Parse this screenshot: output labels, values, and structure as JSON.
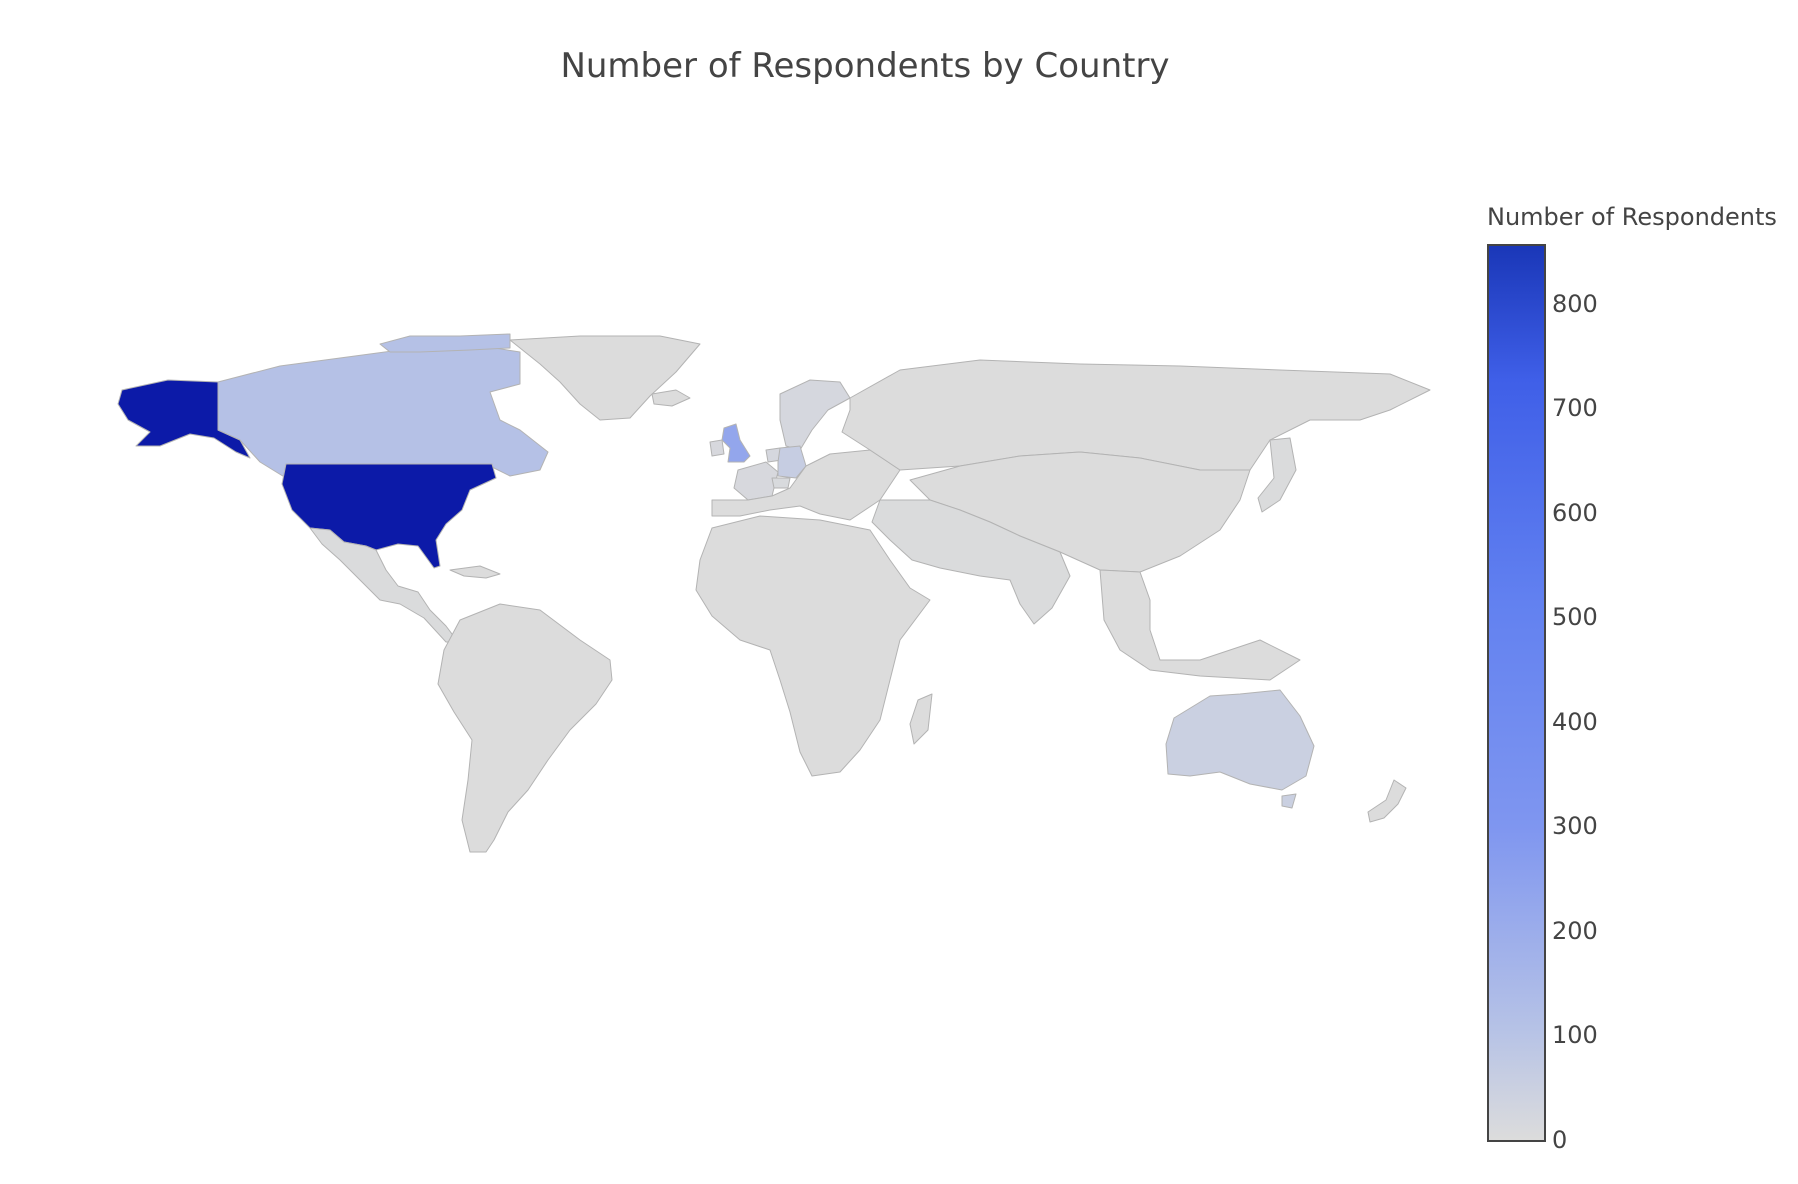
{
  "title": "Number of Respondents by Country",
  "colorbar": {
    "title": "Number of Respondents",
    "min": 0,
    "max": 855,
    "ticks": [
      "0",
      "100",
      "200",
      "300",
      "400",
      "500",
      "600",
      "700",
      "800"
    ],
    "colorscale": [
      [
        0,
        "#dcdcdc"
      ],
      [
        0.12,
        "#b7c3e6"
      ],
      [
        0.35,
        "#7f96f0"
      ],
      [
        0.6,
        "#6281f0"
      ],
      [
        0.85,
        "#3f5fe8"
      ],
      [
        1,
        "#1a37b8"
      ]
    ]
  },
  "colors": {
    "land": "#dcdcdc",
    "border": "#b3b3b3",
    "highest": "#0c1aa8"
  },
  "chart_data": {
    "type": "choropleth",
    "title": "Number of Respondents by Country",
    "legend": "right",
    "values": [
      {
        "country": "United States",
        "value": 855
      },
      {
        "country": "United Kingdom",
        "value": 230
      },
      {
        "country": "Canada",
        "value": 110
      },
      {
        "country": "Germany",
        "value": 60
      },
      {
        "country": "Australia",
        "value": 50
      },
      {
        "country": "Netherlands",
        "value": 20
      },
      {
        "country": "Sweden",
        "value": 20
      },
      {
        "country": "France",
        "value": 15
      },
      {
        "country": "Ireland",
        "value": 15
      },
      {
        "country": "Switzerland",
        "value": 10
      },
      {
        "country": "Mexico",
        "value": 5
      },
      {
        "country": "Brazil",
        "value": 5
      },
      {
        "country": "India",
        "value": 5
      },
      {
        "country": "Japan",
        "value": 5
      },
      {
        "country": "Greenland",
        "value": 0
      },
      {
        "country": "Russia",
        "value": 0
      },
      {
        "country": "China",
        "value": 0
      },
      {
        "country": "Africa",
        "value": 0
      },
      {
        "country": "South America",
        "value": 0
      }
    ]
  }
}
